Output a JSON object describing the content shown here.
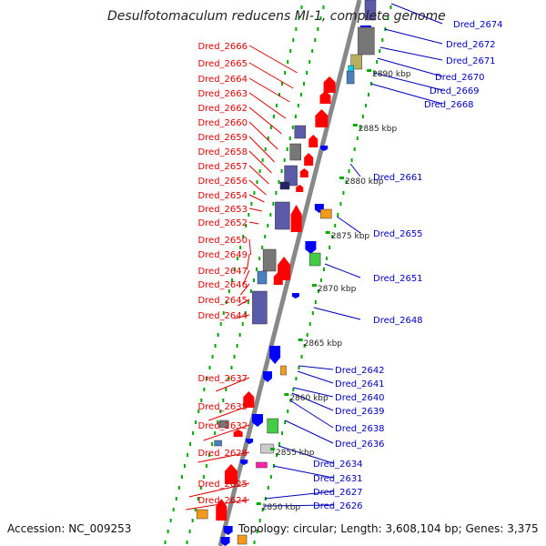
{
  "title": "Desulfotomaculum reducens MI-1, complete genome",
  "accession": "Accession: NC_009253",
  "summary": "Topology: circular; Length: 3,608,104 bp; Genes: 3,375",
  "colors": {
    "left_label": "#dd0000",
    "right_label": "#0000bb",
    "forward_gene": "#ff0000",
    "reverse_gene": "#0000ff",
    "backbone": "#888888",
    "tick": "#00aa00",
    "cog_purple": "#5a5aa8",
    "cog_gray": "#777777",
    "cog_orange": "#f39a1d",
    "cog_green": "#44cc44",
    "cog_blue": "#4a7fc0",
    "cog_khaki": "#b8b060",
    "cog_cyan": "#00d8e8",
    "cog_magenta": "#ff22aa"
  },
  "left_genes": [
    "Dred_2666",
    "Dred_2665",
    "Dred_2664",
    "Dred_2663",
    "Dred_2662",
    "Dred_2660",
    "Dred_2659",
    "Dred_2658",
    "Dred_2657",
    "Dred_2656",
    "Dred_2654",
    "Dred_2653",
    "Dred_2652",
    "Dred_2650",
    "Dred_2649",
    "Dred_2647",
    "Dred_2646",
    "Dred_2645",
    "Dred_2644",
    "Dred_2637",
    "Dred_2635",
    "Dred_2632",
    "Dred_2628",
    "Dred_2625",
    "Dred_2624"
  ],
  "right_genes": [
    "Dred_2674",
    "Dred_2672",
    "Dred_2671",
    "Dred_2670",
    "Dred_2669",
    "Dred_2668",
    "Dred_2661",
    "Dred_2655",
    "Dred_2651",
    "Dred_2648",
    "Dred_2642",
    "Dred_2641",
    "Dred_2640",
    "Dred_2639",
    "Dred_2638",
    "Dred_2636",
    "Dred_2634",
    "Dred_2631",
    "Dred_2627",
    "Dred_2626"
  ],
  "scale_marks": [
    "2890 kbp",
    "2885 kbp",
    "2880 kbp",
    "2875 kbp",
    "2870 kbp",
    "2865 kbp",
    "2860 kbp",
    "2855 kbp",
    "2850 kbp"
  ]
}
